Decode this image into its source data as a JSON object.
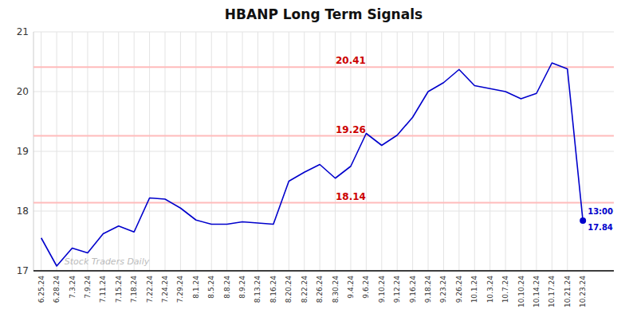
{
  "chart_data": {
    "type": "line",
    "title": "HBANP Long Term Signals",
    "color": "#0000cc",
    "categories": [
      "6.25.24",
      "6.28.24",
      "7.3.24",
      "7.9.24",
      "7.11.24",
      "7.15.24",
      "7.18.24",
      "7.22.24",
      "7.24.24",
      "7.29.24",
      "8.1.24",
      "8.5.24",
      "8.8.24",
      "8.9.24",
      "8.13.24",
      "8.16.24",
      "8.20.24",
      "8.22.24",
      "8.26.24",
      "8.30.24",
      "9.4.24",
      "9.6.24",
      "9.10.24",
      "9.12.24",
      "9.16.24",
      "9.18.24",
      "9.23.24",
      "9.26.24",
      "10.1.24",
      "10.3.24",
      "10.7.24",
      "10.10.24",
      "10.14.24",
      "10.17.24",
      "10.21.24",
      "10.23.24"
    ],
    "values": [
      17.55,
      17.08,
      17.38,
      17.3,
      17.62,
      17.75,
      17.65,
      18.22,
      18.2,
      18.05,
      17.85,
      17.78,
      17.78,
      17.82,
      17.8,
      17.78,
      18.5,
      18.65,
      18.78,
      18.55,
      18.75,
      19.3,
      19.1,
      19.27,
      19.57,
      20.0,
      20.15,
      20.37,
      20.1,
      20.05,
      20.0,
      19.88,
      19.97,
      20.48,
      20.38,
      17.84
    ],
    "reference_lines": [
      {
        "value": 20.41,
        "label": "20.41",
        "color": "#ffbbbb"
      },
      {
        "value": 19.26,
        "label": "19.26",
        "color": "#ffbbbb"
      },
      {
        "value": 18.14,
        "label": "18.14",
        "color": "#ffbbbb"
      }
    ],
    "annotations": [
      "13:00",
      "17.84"
    ],
    "watermark": "Stock Traders Daily",
    "ylim": [
      17.0,
      21.0
    ],
    "yticks": [
      17,
      18,
      19,
      20,
      21
    ],
    "grid": true
  }
}
